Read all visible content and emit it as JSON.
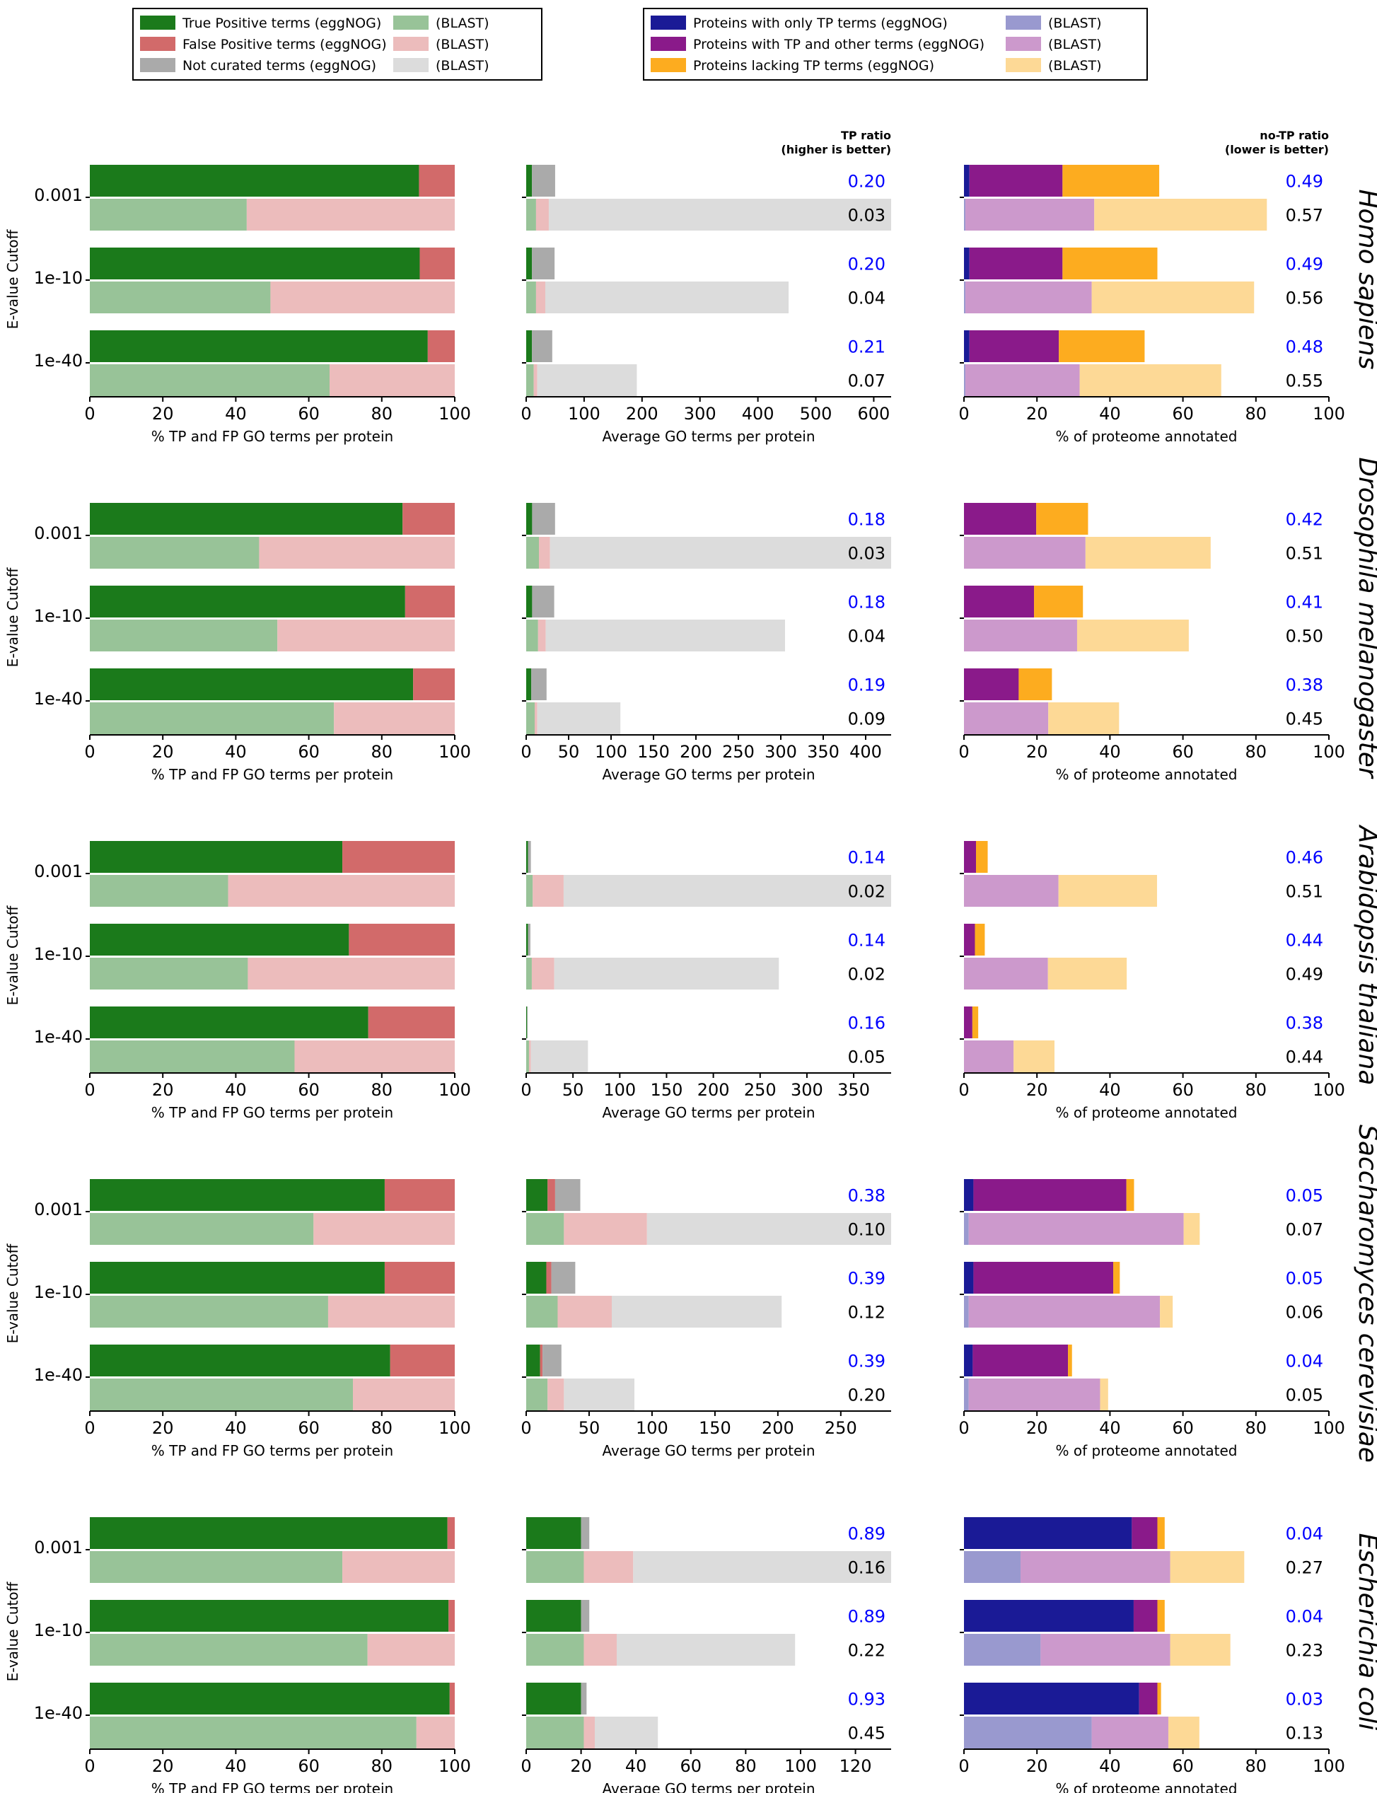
{
  "colors": {
    "tp_egg": "#1b7a1b",
    "tp_blast": "#98c398",
    "fp_egg": "#d26a6a",
    "fp_blast": "#ecbcbc",
    "nc_egg": "#aaaaaa",
    "nc_blast": "#dcdcdc",
    "only_tp_egg": "#1a1a96",
    "only_tp_blast": "#9999cf",
    "tp_other_egg": "#8a1a8a",
    "tp_other_blast": "#cc99cc",
    "lacking_egg": "#fdac1f",
    "lacking_blast": "#fdd996",
    "ratio_egg": "#0000ff",
    "ratio_blast": "#000000"
  },
  "legend_left": [
    {
      "label": "True Positive terms (eggNOG)",
      "color": "tp_egg"
    },
    {
      "label": "(BLAST)",
      "color": "tp_blast"
    },
    {
      "label": "False Positive terms (eggNOG)",
      "color": "fp_egg"
    },
    {
      "label": "(BLAST)",
      "color": "fp_blast"
    },
    {
      "label": "Not curated terms (eggNOG)",
      "color": "nc_egg"
    },
    {
      "label": "(BLAST)",
      "color": "nc_blast"
    }
  ],
  "legend_right": [
    {
      "label": "Proteins with only TP terms (eggNOG)",
      "color": "only_tp_egg"
    },
    {
      "label": "(BLAST)",
      "color": "only_tp_blast"
    },
    {
      "label": "Proteins with TP and other terms (eggNOG)",
      "color": "tp_other_egg"
    },
    {
      "label": "(BLAST)",
      "color": "tp_other_blast"
    },
    {
      "label": "Proteins lacking TP terms (eggNOG)",
      "color": "lacking_egg"
    },
    {
      "label": "(BLAST)",
      "color": "lacking_blast"
    }
  ],
  "axis_labels": {
    "ylabel": "E-value Cutoff",
    "panel1_xlabel": "% TP and FP GO terms per protein",
    "panel2_xlabel": "Average GO terms per protein",
    "panel3_xlabel": "% of proteome annotated",
    "tp_ratio_header": [
      "TP ratio",
      "(higher is better)"
    ],
    "notp_ratio_header": [
      "no-TP ratio",
      "(lower is better)"
    ]
  },
  "chart_data": {
    "type": "bar",
    "orientation": "horizontal-stacked",
    "cutoffs": [
      "0.001",
      "1e-10",
      "1e-40"
    ],
    "panels": [
      {
        "species": "Homo sapiens",
        "pct": [
          {
            "cutoff": "0.001",
            "egg": [
              90.2,
              9.8
            ],
            "blast": [
              43.0,
              57.0
            ]
          },
          {
            "cutoff": "1e-10",
            "egg": [
              90.4,
              9.6
            ],
            "blast": [
              49.5,
              50.5
            ]
          },
          {
            "cutoff": "1e-40",
            "egg": [
              92.6,
              7.4
            ],
            "blast": [
              65.7,
              34.3
            ]
          }
        ],
        "avg": {
          "xmax": 630,
          "ticks": [
            0,
            100,
            200,
            300,
            400,
            500,
            600
          ],
          "rows": [
            {
              "cutoff": "0.001",
              "egg": [
                10,
                0,
                40
              ],
              "blast": [
                17,
                22,
                591
              ],
              "tp_ratio": [
                "0.20",
                "0.03"
              ]
            },
            {
              "cutoff": "1e-10",
              "egg": [
                10,
                0,
                39
              ],
              "blast": [
                17,
                16,
                420
              ],
              "tp_ratio": [
                "0.20",
                "0.04"
              ]
            },
            {
              "cutoff": "1e-40",
              "egg": [
                10,
                0,
                35
              ],
              "blast": [
                13,
                6,
                172
              ],
              "tp_ratio": [
                "0.21",
                "0.07"
              ]
            }
          ]
        },
        "proteome": [
          {
            "cutoff": "0.001",
            "egg": [
              1.5,
              25.5,
              26.5
            ],
            "blast": [
              0.4,
              35.3,
              47.3
            ],
            "notp_ratio": [
              "0.49",
              "0.57"
            ]
          },
          {
            "cutoff": "1e-10",
            "egg": [
              1.5,
              25.5,
              26.0
            ],
            "blast": [
              0.4,
              34.6,
              44.5
            ],
            "notp_ratio": [
              "0.49",
              "0.56"
            ]
          },
          {
            "cutoff": "1e-40",
            "egg": [
              1.5,
              24.5,
              23.5
            ],
            "blast": [
              0.4,
              31.3,
              38.8
            ],
            "notp_ratio": [
              "0.48",
              "0.55"
            ]
          }
        ]
      },
      {
        "species": "Drosophila melanogaster",
        "pct": [
          {
            "cutoff": "0.001",
            "egg": [
              85.7,
              14.3
            ],
            "blast": [
              46.4,
              53.6
            ]
          },
          {
            "cutoff": "1e-10",
            "egg": [
              86.4,
              13.6
            ],
            "blast": [
              51.4,
              48.6
            ]
          },
          {
            "cutoff": "1e-40",
            "egg": [
              88.6,
              11.4
            ],
            "blast": [
              66.9,
              33.1
            ]
          }
        ],
        "avg": {
          "xmax": 430,
          "ticks": [
            0,
            50,
            100,
            150,
            200,
            250,
            300,
            350,
            400
          ],
          "rows": [
            {
              "cutoff": "0.001",
              "egg": [
                7,
                0,
                27
              ],
              "blast": [
                15,
                13,
                402
              ],
              "tp_ratio": [
                "0.18",
                "0.03"
              ]
            },
            {
              "cutoff": "1e-10",
              "egg": [
                7,
                0,
                26
              ],
              "blast": [
                14,
                9,
                282
              ],
              "tp_ratio": [
                "0.18",
                "0.04"
              ]
            },
            {
              "cutoff": "1e-40",
              "egg": [
                6,
                0,
                18
              ],
              "blast": [
                10,
                3,
                98
              ],
              "tp_ratio": [
                "0.19",
                "0.09"
              ]
            }
          ]
        },
        "proteome": [
          {
            "cutoff": "0.001",
            "egg": [
              0,
              19.8,
              14.2
            ],
            "blast": [
              0,
              33.3,
              34.3
            ],
            "notp_ratio": [
              "0.42",
              "0.51"
            ]
          },
          {
            "cutoff": "1e-10",
            "egg": [
              0,
              19.2,
              13.4
            ],
            "blast": [
              0,
              31.0,
              30.6
            ],
            "notp_ratio": [
              "0.41",
              "0.50"
            ]
          },
          {
            "cutoff": "1e-40",
            "egg": [
              0,
              15.0,
              9.1
            ],
            "blast": [
              0,
              23.1,
              19.4
            ],
            "notp_ratio": [
              "0.38",
              "0.45"
            ]
          }
        ]
      },
      {
        "species": "Arabidopsis thaliana",
        "pct": [
          {
            "cutoff": "0.001",
            "egg": [
              69.2,
              30.8
            ],
            "blast": [
              37.9,
              62.1
            ]
          },
          {
            "cutoff": "1e-10",
            "egg": [
              71.0,
              29.0
            ],
            "blast": [
              43.3,
              56.7
            ]
          },
          {
            "cutoff": "1e-40",
            "egg": [
              76.3,
              23.7
            ],
            "blast": [
              56.1,
              43.9
            ]
          }
        ],
        "avg": {
          "xmax": 390,
          "ticks": [
            0,
            50,
            100,
            150,
            200,
            250,
            300,
            350
          ],
          "rows": [
            {
              "cutoff": "0.001",
              "egg": [
                2,
                0,
                3
              ],
              "blast": [
                7,
                33,
                350
              ],
              "tp_ratio": [
                "0.14",
                "0.02"
              ]
            },
            {
              "cutoff": "1e-10",
              "egg": [
                2,
                0,
                2.5
              ],
              "blast": [
                6,
                24,
                240
              ],
              "tp_ratio": [
                "0.14",
                "0.02"
              ]
            },
            {
              "cutoff": "1e-40",
              "egg": [
                1,
                0,
                0.5
              ],
              "blast": [
                3,
                2,
                61
              ],
              "tp_ratio": [
                "0.16",
                "0.05"
              ]
            }
          ]
        },
        "proteome": [
          {
            "cutoff": "0.001",
            "egg": [
              0,
              3.3,
              3.2
            ],
            "blast": [
              0,
              25.9,
              27.0
            ],
            "notp_ratio": [
              "0.46",
              "0.51"
            ]
          },
          {
            "cutoff": "1e-10",
            "egg": [
              0,
              3.0,
              2.7
            ],
            "blast": [
              0,
              23.0,
              21.6
            ],
            "notp_ratio": [
              "0.44",
              "0.49"
            ]
          },
          {
            "cutoff": "1e-40",
            "egg": [
              0,
              2.3,
              1.6
            ],
            "blast": [
              0,
              13.6,
              11.2
            ],
            "notp_ratio": [
              "0.38",
              "0.44"
            ]
          }
        ]
      },
      {
        "species": "Saccharomyces cerevisiae",
        "pct": [
          {
            "cutoff": "0.001",
            "egg": [
              80.8,
              19.2
            ],
            "blast": [
              61.3,
              38.7
            ]
          },
          {
            "cutoff": "1e-10",
            "egg": [
              80.8,
              19.2
            ],
            "blast": [
              65.3,
              34.7
            ]
          },
          {
            "cutoff": "1e-40",
            "egg": [
              82.3,
              17.7
            ],
            "blast": [
              72.1,
              27.9
            ]
          }
        ],
        "avg": {
          "xmax": 290,
          "ticks": [
            0,
            50,
            100,
            150,
            200,
            250
          ],
          "rows": [
            {
              "cutoff": "0.001",
              "egg": [
                17,
                6,
                20
              ],
              "blast": [
                30,
                66,
                194
              ],
              "tp_ratio": [
                "0.38",
                "0.10"
              ]
            },
            {
              "cutoff": "1e-10",
              "egg": [
                16,
                4,
                19
              ],
              "blast": [
                25,
                43,
                135
              ],
              "tp_ratio": [
                "0.39",
                "0.12"
              ]
            },
            {
              "cutoff": "1e-40",
              "egg": [
                11,
                2,
                15
              ],
              "blast": [
                17,
                13,
                56
              ],
              "tp_ratio": [
                "0.39",
                "0.20"
              ]
            }
          ]
        },
        "proteome": [
          {
            "cutoff": "0.001",
            "egg": [
              2.6,
              41.9,
              2.1
            ],
            "blast": [
              1.3,
              58.9,
              4.4
            ],
            "notp_ratio": [
              "0.05",
              "0.07"
            ]
          },
          {
            "cutoff": "1e-10",
            "egg": [
              2.6,
              38.3,
              1.8
            ],
            "blast": [
              1.3,
              52.4,
              3.5
            ],
            "notp_ratio": [
              "0.05",
              "0.06"
            ]
          },
          {
            "cutoff": "1e-40",
            "egg": [
              2.4,
              26.1,
              1.1
            ],
            "blast": [
              1.3,
              36.0,
              2.2
            ],
            "notp_ratio": [
              "0.04",
              "0.05"
            ]
          }
        ]
      },
      {
        "species": "Escherichia coli",
        "pct": [
          {
            "cutoff": "0.001",
            "egg": [
              98.0,
              2.0
            ],
            "blast": [
              69.2,
              30.8
            ]
          },
          {
            "cutoff": "1e-10",
            "egg": [
              98.3,
              1.7
            ],
            "blast": [
              76.1,
              23.9
            ]
          },
          {
            "cutoff": "1e-40",
            "egg": [
              98.6,
              1.4
            ],
            "blast": [
              89.5,
              10.5
            ]
          }
        ],
        "avg": {
          "xmax": 133,
          "ticks": [
            0,
            20,
            40,
            60,
            80,
            100,
            120
          ],
          "rows": [
            {
              "cutoff": "0.001",
              "egg": [
                20,
                0,
                3
              ],
              "blast": [
                21,
                18,
                94
              ],
              "tp_ratio": [
                "0.89",
                "0.16"
              ]
            },
            {
              "cutoff": "1e-10",
              "egg": [
                20,
                0,
                3
              ],
              "blast": [
                21,
                12,
                65
              ],
              "tp_ratio": [
                "0.89",
                "0.22"
              ]
            },
            {
              "cutoff": "1e-40",
              "egg": [
                20,
                0,
                2
              ],
              "blast": [
                21,
                4,
                23
              ],
              "tp_ratio": [
                "0.93",
                "0.45"
              ]
            }
          ]
        },
        "proteome": [
          {
            "cutoff": "0.001",
            "egg": [
              46.0,
              7.0,
              2.0
            ],
            "blast": [
              15.5,
              41.0,
              20.3
            ],
            "notp_ratio": [
              "0.04",
              "0.27"
            ]
          },
          {
            "cutoff": "1e-10",
            "egg": [
              46.5,
              6.5,
              2.0
            ],
            "blast": [
              21.0,
              35.5,
              16.5
            ],
            "notp_ratio": [
              "0.04",
              "0.23"
            ]
          },
          {
            "cutoff": "1e-40",
            "egg": [
              48.0,
              5.0,
              1.0
            ],
            "blast": [
              35.0,
              21.0,
              8.5
            ],
            "notp_ratio": [
              "0.03",
              "0.13"
            ]
          }
        ]
      }
    ],
    "panel1_xlim": [
      0,
      100
    ],
    "panel1_ticks": [
      0,
      20,
      40,
      60,
      80,
      100
    ],
    "panel3_xlim": [
      0,
      100
    ],
    "panel3_ticks": [
      0,
      20,
      40,
      60,
      80,
      100
    ]
  }
}
